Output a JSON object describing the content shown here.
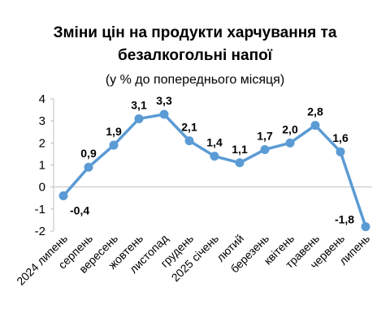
{
  "title_line1": "Зміни цін на продукти харчування та",
  "title_line2": "безалкогольні напої",
  "subtitle": "(у % до попереднього місяця)",
  "colors": {
    "line": "#5B9BD5",
    "marker": "#5B9BD5",
    "axis": "#BFBFBF"
  },
  "chart_data": {
    "type": "line",
    "title": "Зміни цін на продукти харчування та безалкогольні напої",
    "subtitle": "(у % до попереднього місяця)",
    "categories": [
      "2024 липень",
      "серпень",
      "вересень",
      "жовтень",
      "листопад",
      "грудень",
      "2025 січень",
      "лютий",
      "березень",
      "квітень",
      "травень",
      "червень",
      "липень"
    ],
    "values": [
      -0.4,
      0.9,
      1.9,
      3.1,
      3.3,
      2.1,
      1.4,
      1.1,
      1.7,
      2.0,
      2.8,
      1.6,
      -1.8
    ],
    "data_labels": [
      "-0,4",
      "0,9",
      "1,9",
      "3,1",
      "3,3",
      "2,1",
      "1,4",
      "1,1",
      "1,7",
      "2,0",
      "2,8",
      "1,6",
      "-1,8"
    ],
    "yticks": [
      4,
      3,
      2,
      1,
      0,
      -1,
      -2
    ],
    "ylim": [
      -2,
      4
    ],
    "grid": false,
    "legend": "none",
    "markers": true
  }
}
